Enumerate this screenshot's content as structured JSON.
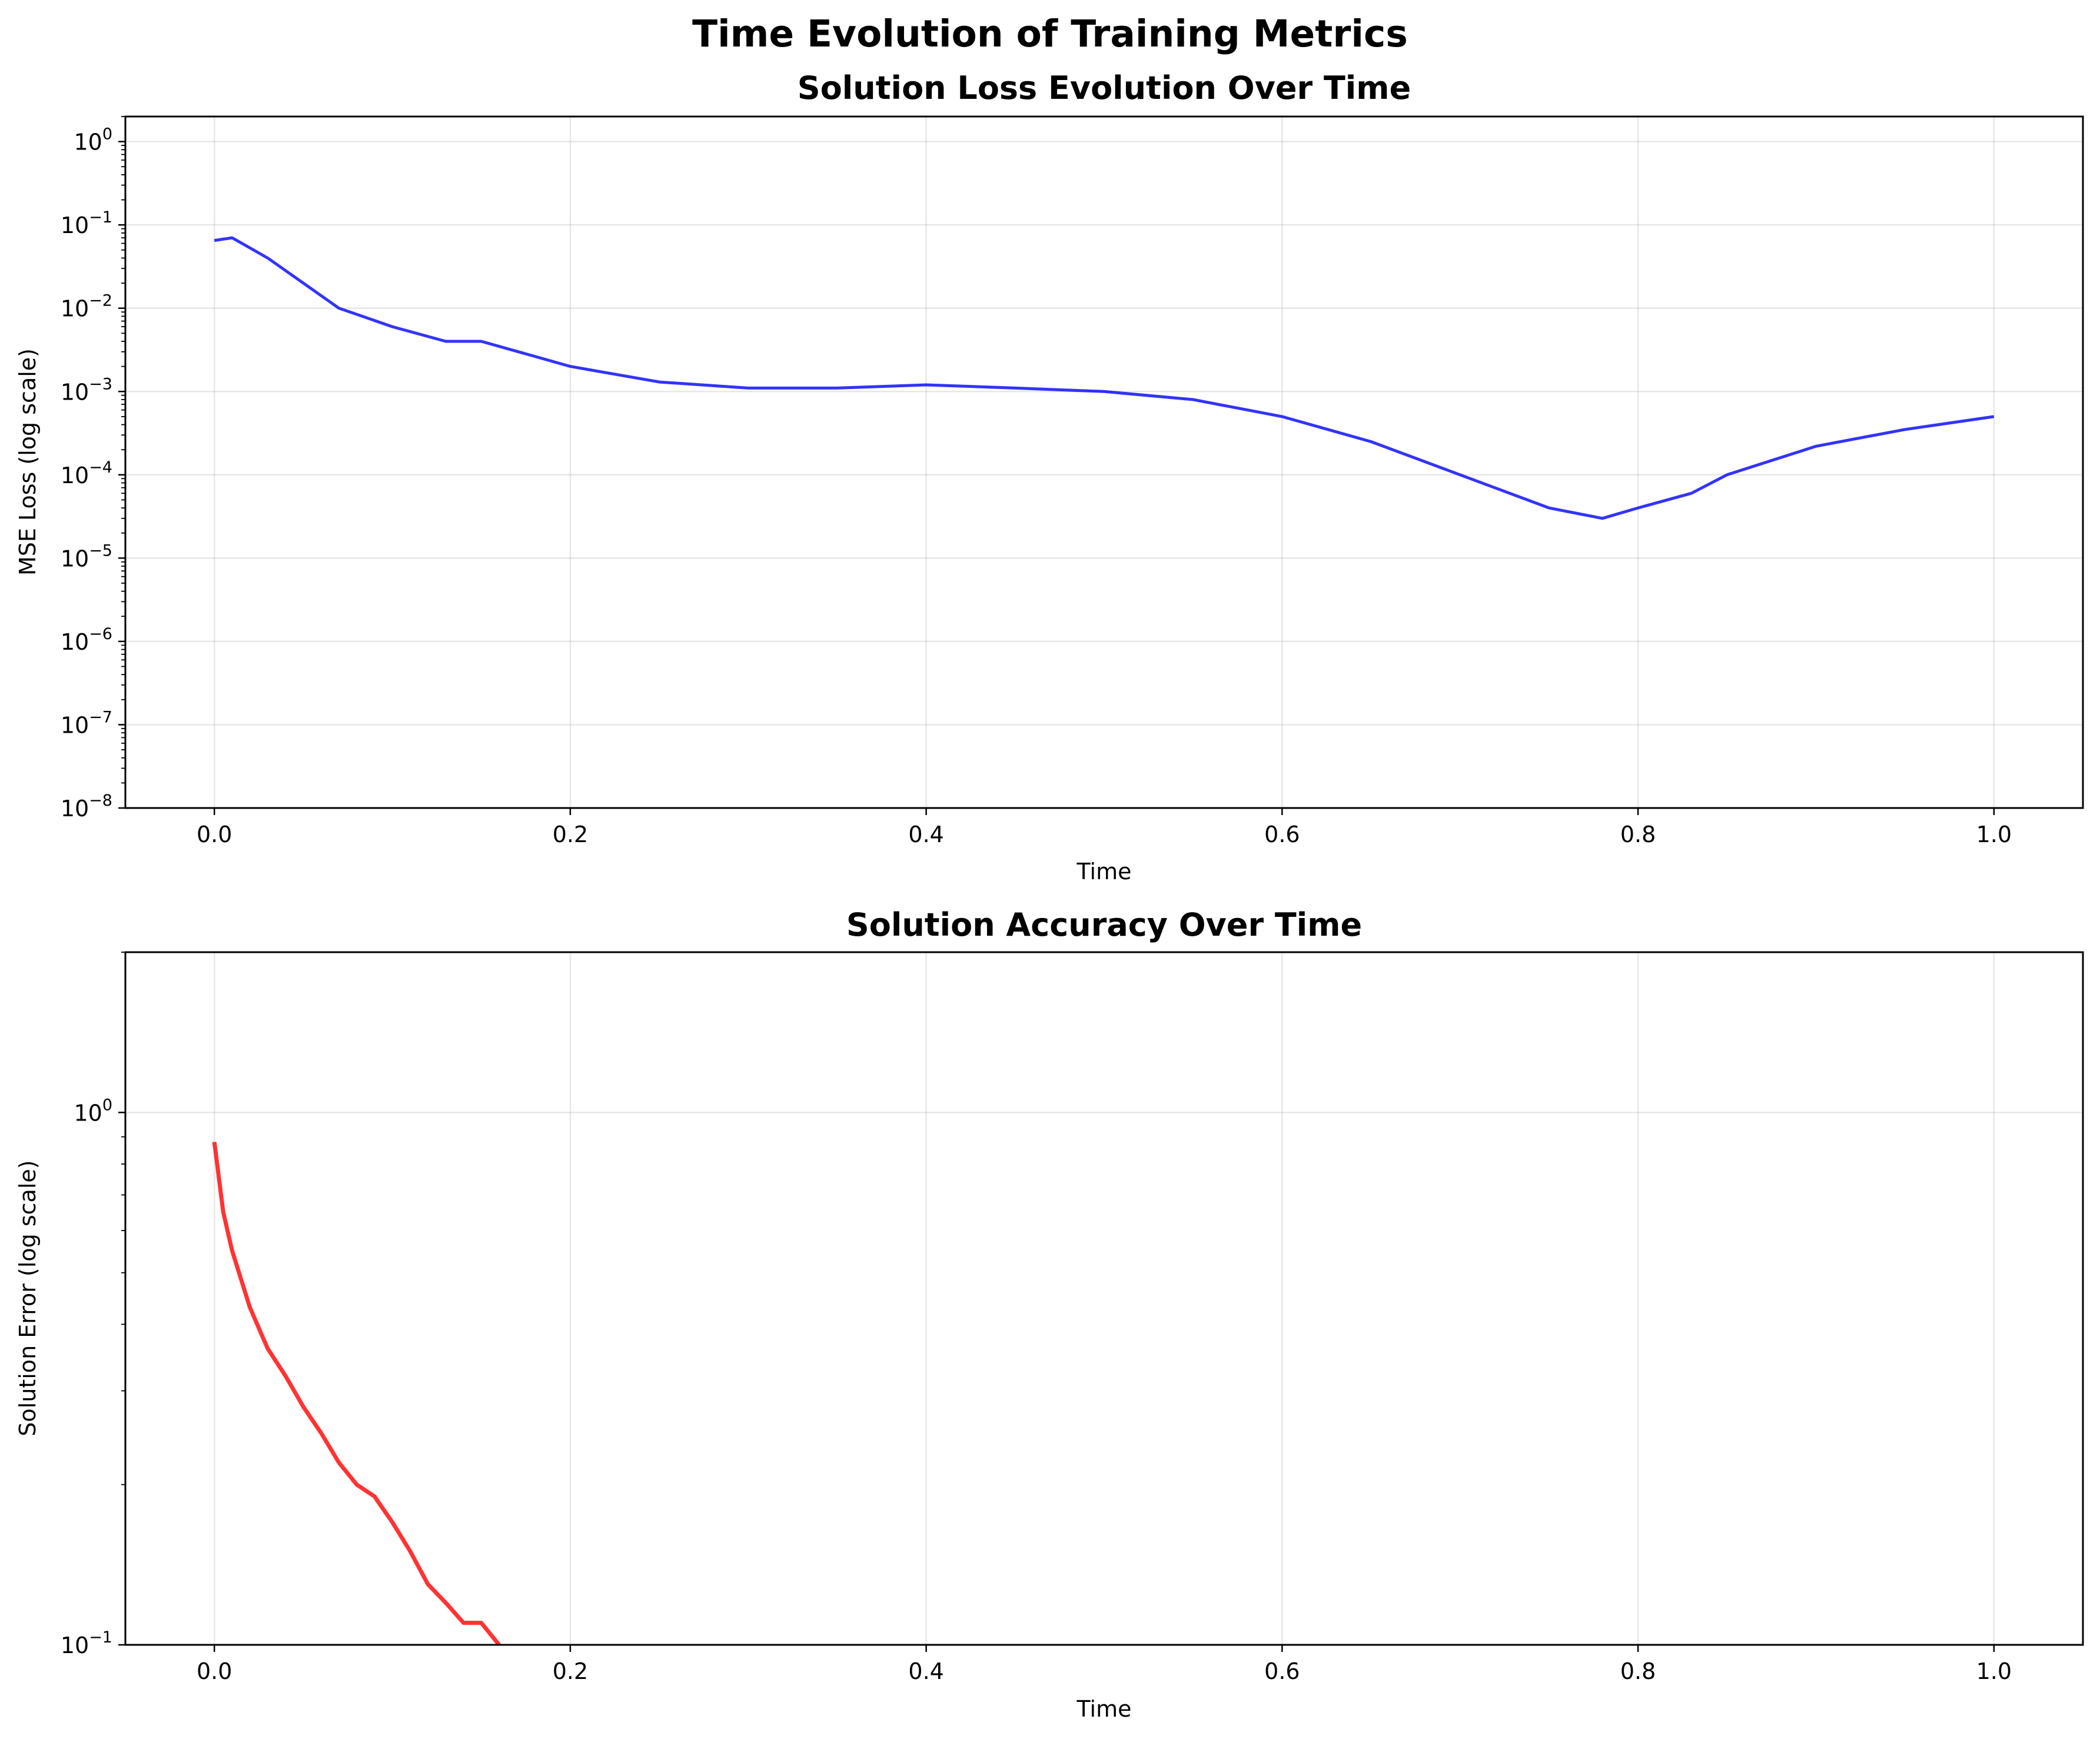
{
  "figure": {
    "suptitle": "Time Evolution of Training Metrics"
  },
  "chart_data": [
    {
      "type": "line",
      "title": "Solution Loss Evolution Over Time",
      "xlabel": "Time",
      "ylabel": "MSE Loss (log scale)",
      "yscale": "log",
      "xlim": [
        -0.05,
        1.05
      ],
      "ylim": [
        1e-08,
        2
      ],
      "grid": true,
      "color": "#0000ff",
      "x_ticks": [
        0.0,
        0.2,
        0.4,
        0.6,
        0.8,
        1.0
      ],
      "x_tick_labels": [
        "0.0",
        "0.2",
        "0.4",
        "0.6",
        "0.8",
        "1.0"
      ],
      "y_ticks": [
        0,
        -1,
        -2,
        -3,
        -4,
        -5,
        -6,
        -7,
        -8
      ],
      "y_tick_labels": [
        {
          "base": "10",
          "exp": "0"
        },
        {
          "base": "10",
          "exp": "−1"
        },
        {
          "base": "10",
          "exp": "−2"
        },
        {
          "base": "10",
          "exp": "−3"
        },
        {
          "base": "10",
          "exp": "−4"
        },
        {
          "base": "10",
          "exp": "−5"
        },
        {
          "base": "10",
          "exp": "−6"
        },
        {
          "base": "10",
          "exp": "−7"
        },
        {
          "base": "10",
          "exp": "−8"
        }
      ],
      "series": [
        {
          "x": [
            0.0,
            0.01,
            0.03,
            0.05,
            0.07,
            0.1,
            0.13,
            0.15,
            0.2,
            0.25,
            0.3,
            0.35,
            0.4,
            0.45,
            0.5,
            0.55,
            0.6,
            0.65,
            0.7,
            0.75,
            0.78,
            0.8,
            0.83,
            0.85,
            0.9,
            0.95,
            1.0
          ],
          "y": [
            0.065,
            0.07,
            0.04,
            0.02,
            0.01,
            0.006,
            0.004,
            0.004,
            0.002,
            0.0013,
            0.0011,
            0.0011,
            0.0012,
            0.0011,
            0.001,
            0.0008,
            0.0005,
            0.00025,
            0.0001,
            4e-05,
            3e-05,
            4e-05,
            6e-05,
            0.0001,
            0.00022,
            0.00035,
            0.0005
          ]
        }
      ]
    },
    {
      "type": "line",
      "title": "Solution Accuracy Over Time",
      "xlabel": "Time",
      "ylabel": "Solution Error (log scale)",
      "yscale": "log",
      "xlim": [
        -0.05,
        1.05
      ],
      "ylim": [
        0.1,
        2
      ],
      "grid": true,
      "color": "#ff0000",
      "x_ticks": [
        0.0,
        0.2,
        0.4,
        0.6,
        0.8,
        1.0
      ],
      "x_tick_labels": [
        "0.0",
        "0.2",
        "0.4",
        "0.6",
        "0.8",
        "1.0"
      ],
      "y_ticks": [
        0,
        -1
      ],
      "y_tick_labels": [
        {
          "base": "10",
          "exp": "0"
        },
        {
          "base": "10",
          "exp": "−1"
        }
      ],
      "series": [
        {
          "x": [
            0.0,
            0.005,
            0.01,
            0.02,
            0.03,
            0.04,
            0.05,
            0.06,
            0.07,
            0.08,
            0.09,
            0.1,
            0.11,
            0.12,
            0.13,
            0.14,
            0.15,
            0.16
          ],
          "y": [
            0.88,
            0.65,
            0.55,
            0.43,
            0.36,
            0.32,
            0.28,
            0.25,
            0.22,
            0.2,
            0.19,
            0.17,
            0.15,
            0.13,
            0.12,
            0.11,
            0.11,
            0.1
          ]
        }
      ]
    }
  ]
}
